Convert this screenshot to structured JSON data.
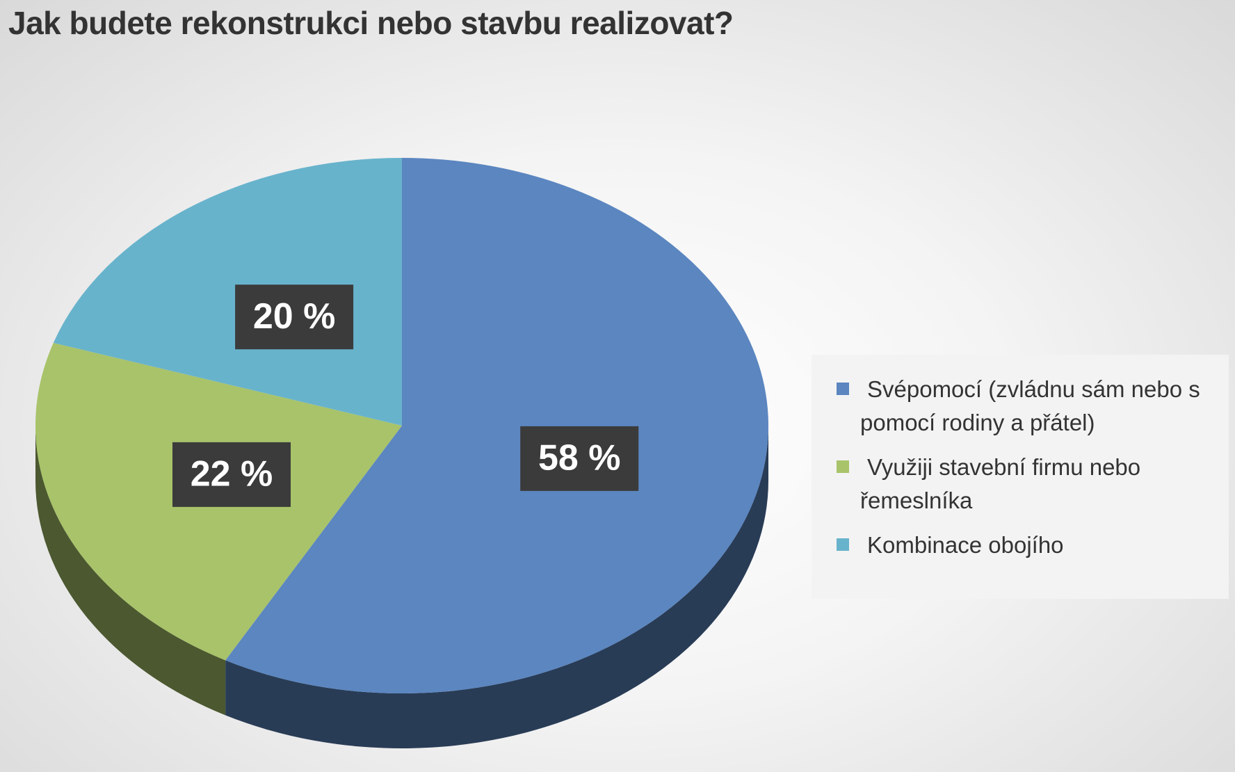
{
  "chart_data": {
    "type": "pie",
    "title": "Jak budete rekonstrukci nebo stavbu realizovat?",
    "categories": [
      "Svépomocí (zvládnu sám nebo s pomocí rodiny a přátel)",
      "Využiji stavební firmu nebo řemeslníka",
      "Kombinace obojího"
    ],
    "values": [
      58,
      22,
      20
    ],
    "value_labels": [
      "58 %",
      "22 %",
      "20 %"
    ],
    "colors": [
      "#5b86c0",
      "#a8c36a",
      "#68b3cc"
    ],
    "legend": "right"
  }
}
